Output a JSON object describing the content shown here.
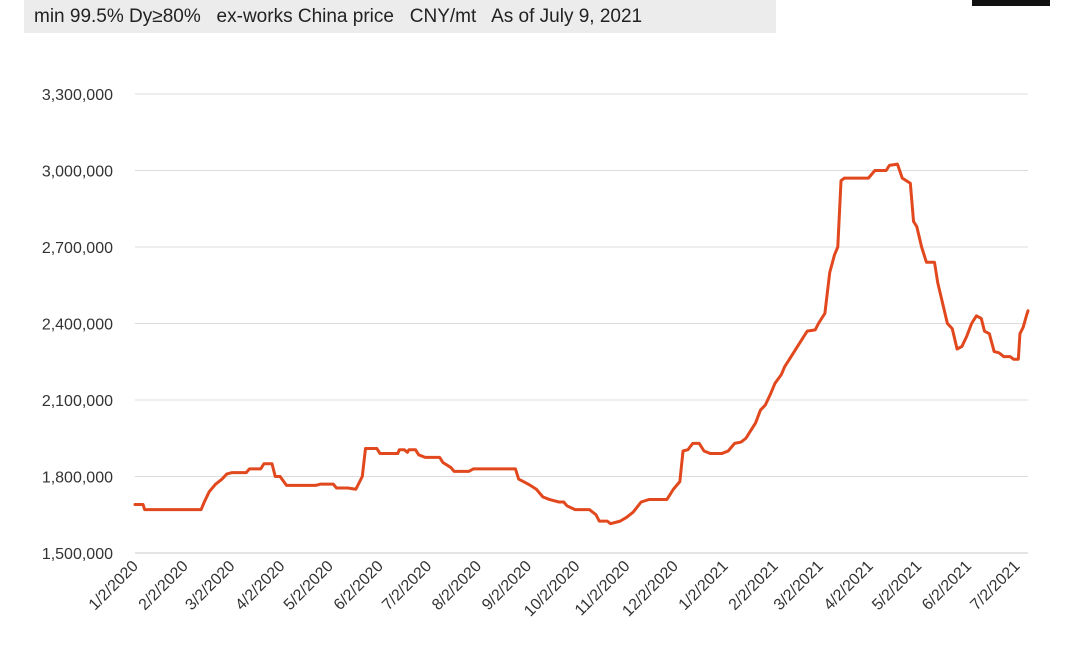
{
  "header": {
    "subtitle": "min 99.5% Dy≥80%   ex-works China price   CNY/mt   As of July 9, 2021"
  },
  "colors": {
    "series": "#e2481d",
    "grid": "#dcdcdc",
    "header_bg": "#ececec"
  },
  "chart_data": {
    "type": "line",
    "title": "",
    "xlabel": "",
    "ylabel": "",
    "ylim": [
      1500000,
      3300000
    ],
    "y_ticks": [
      1500000,
      1800000,
      2100000,
      2400000,
      2700000,
      3000000,
      3300000
    ],
    "y_tick_labels": [
      "1,500,000",
      "1,800,000",
      "2,100,000",
      "2,400,000",
      "2,700,000",
      "3,000,000",
      "3,300,000"
    ],
    "x_range": [
      "2020-01-02",
      "2021-07-09"
    ],
    "x_ticks": [
      "2020-01-02",
      "2020-02-02",
      "2020-03-02",
      "2020-04-02",
      "2020-05-02",
      "2020-06-02",
      "2020-07-02",
      "2020-08-02",
      "2020-09-02",
      "2020-10-02",
      "2020-11-02",
      "2020-12-02",
      "2021-01-02",
      "2021-02-02",
      "2021-03-02",
      "2021-04-02",
      "2021-05-02",
      "2021-06-02",
      "2021-07-02"
    ],
    "x_tick_labels": [
      "1/2/2020",
      "2/2/2020",
      "3/2/2020",
      "4/2/2020",
      "5/2/2020",
      "6/2/2020",
      "7/2/2020",
      "8/2/2020",
      "9/2/2020",
      "10/2/2020",
      "11/2/2020",
      "12/2/2020",
      "1/2/2021",
      "2/2/2021",
      "3/2/2021",
      "4/2/2021",
      "5/2/2021",
      "6/2/2021",
      "7/2/2021"
    ],
    "grid": true,
    "series": [
      {
        "points": [
          [
            "2020-01-02",
            1690000
          ],
          [
            "2020-01-07",
            1690000
          ],
          [
            "2020-01-08",
            1670000
          ],
          [
            "2020-02-12",
            1670000
          ],
          [
            "2020-02-14",
            1700000
          ],
          [
            "2020-02-17",
            1740000
          ],
          [
            "2020-02-21",
            1770000
          ],
          [
            "2020-02-25",
            1790000
          ],
          [
            "2020-02-28",
            1810000
          ],
          [
            "2020-03-02",
            1815000
          ],
          [
            "2020-03-11",
            1815000
          ],
          [
            "2020-03-13",
            1830000
          ],
          [
            "2020-03-20",
            1830000
          ],
          [
            "2020-03-22",
            1850000
          ],
          [
            "2020-03-27",
            1850000
          ],
          [
            "2020-03-29",
            1800000
          ],
          [
            "2020-04-01",
            1800000
          ],
          [
            "2020-04-05",
            1765000
          ],
          [
            "2020-04-23",
            1765000
          ],
          [
            "2020-04-26",
            1770000
          ],
          [
            "2020-05-04",
            1770000
          ],
          [
            "2020-05-06",
            1755000
          ],
          [
            "2020-05-13",
            1755000
          ],
          [
            "2020-05-18",
            1750000
          ],
          [
            "2020-05-22",
            1800000
          ],
          [
            "2020-05-24",
            1910000
          ],
          [
            "2020-05-31",
            1910000
          ],
          [
            "2020-06-02",
            1890000
          ],
          [
            "2020-06-13",
            1890000
          ],
          [
            "2020-06-14",
            1905000
          ],
          [
            "2020-06-17",
            1905000
          ],
          [
            "2020-06-19",
            1895000
          ],
          [
            "2020-06-20",
            1905000
          ],
          [
            "2020-06-24",
            1905000
          ],
          [
            "2020-06-26",
            1885000
          ],
          [
            "2020-06-30",
            1875000
          ],
          [
            "2020-07-09",
            1875000
          ],
          [
            "2020-07-11",
            1855000
          ],
          [
            "2020-07-16",
            1835000
          ],
          [
            "2020-07-18",
            1820000
          ],
          [
            "2020-07-27",
            1820000
          ],
          [
            "2020-07-30",
            1830000
          ],
          [
            "2020-08-25",
            1830000
          ],
          [
            "2020-08-27",
            1790000
          ],
          [
            "2020-09-02",
            1770000
          ],
          [
            "2020-09-07",
            1750000
          ],
          [
            "2020-09-11",
            1720000
          ],
          [
            "2020-09-15",
            1710000
          ],
          [
            "2020-09-21",
            1700000
          ],
          [
            "2020-09-24",
            1700000
          ],
          [
            "2020-09-26",
            1685000
          ],
          [
            "2020-10-01",
            1670000
          ],
          [
            "2020-10-10",
            1670000
          ],
          [
            "2020-10-14",
            1650000
          ],
          [
            "2020-10-16",
            1625000
          ],
          [
            "2020-10-21",
            1625000
          ],
          [
            "2020-10-23",
            1615000
          ],
          [
            "2020-10-29",
            1625000
          ],
          [
            "2020-11-02",
            1640000
          ],
          [
            "2020-11-06",
            1660000
          ],
          [
            "2020-11-11",
            1700000
          ],
          [
            "2020-11-16",
            1710000
          ],
          [
            "2020-11-27",
            1710000
          ],
          [
            "2020-12-01",
            1750000
          ],
          [
            "2020-12-05",
            1780000
          ],
          [
            "2020-12-07",
            1900000
          ],
          [
            "2020-12-10",
            1905000
          ],
          [
            "2020-12-13",
            1930000
          ],
          [
            "2020-12-17",
            1930000
          ],
          [
            "2020-12-20",
            1900000
          ],
          [
            "2020-12-24",
            1890000
          ],
          [
            "2020-12-31",
            1890000
          ],
          [
            "2021-01-04",
            1900000
          ],
          [
            "2021-01-08",
            1930000
          ],
          [
            "2021-01-12",
            1935000
          ],
          [
            "2021-01-15",
            1950000
          ],
          [
            "2021-01-18",
            1980000
          ],
          [
            "2021-01-21",
            2010000
          ],
          [
            "2021-01-24",
            2060000
          ],
          [
            "2021-01-27",
            2080000
          ],
          [
            "2021-01-30",
            2120000
          ],
          [
            "2021-02-02",
            2165000
          ],
          [
            "2021-02-06",
            2200000
          ],
          [
            "2021-02-08",
            2230000
          ],
          [
            "2021-02-12",
            2270000
          ],
          [
            "2021-02-16",
            2310000
          ],
          [
            "2021-02-19",
            2340000
          ],
          [
            "2021-02-22",
            2370000
          ],
          [
            "2021-02-27",
            2375000
          ],
          [
            "2021-03-01",
            2400000
          ],
          [
            "2021-03-05",
            2440000
          ],
          [
            "2021-03-08",
            2600000
          ],
          [
            "2021-03-11",
            2670000
          ],
          [
            "2021-03-13",
            2700000
          ],
          [
            "2021-03-15",
            2960000
          ],
          [
            "2021-03-17",
            2970000
          ],
          [
            "2021-04-01",
            2970000
          ],
          [
            "2021-04-05",
            3000000
          ],
          [
            "2021-04-12",
            3000000
          ],
          [
            "2021-04-14",
            3020000
          ],
          [
            "2021-04-19",
            3025000
          ],
          [
            "2021-04-22",
            2970000
          ],
          [
            "2021-04-27",
            2950000
          ],
          [
            "2021-04-29",
            2800000
          ],
          [
            "2021-05-01",
            2780000
          ],
          [
            "2021-05-04",
            2700000
          ],
          [
            "2021-05-07",
            2640000
          ],
          [
            "2021-05-12",
            2640000
          ],
          [
            "2021-05-14",
            2560000
          ],
          [
            "2021-05-17",
            2480000
          ],
          [
            "2021-05-20",
            2400000
          ],
          [
            "2021-05-23",
            2380000
          ],
          [
            "2021-05-26",
            2300000
          ],
          [
            "2021-05-29",
            2310000
          ],
          [
            "2021-06-01",
            2350000
          ],
          [
            "2021-06-04",
            2400000
          ],
          [
            "2021-06-07",
            2430000
          ],
          [
            "2021-06-10",
            2420000
          ],
          [
            "2021-06-12",
            2370000
          ],
          [
            "2021-06-15",
            2360000
          ],
          [
            "2021-06-18",
            2290000
          ],
          [
            "2021-06-21",
            2285000
          ],
          [
            "2021-06-24",
            2270000
          ],
          [
            "2021-06-28",
            2270000
          ],
          [
            "2021-06-30",
            2260000
          ],
          [
            "2021-07-03",
            2260000
          ],
          [
            "2021-07-04",
            2360000
          ],
          [
            "2021-07-06",
            2385000
          ],
          [
            "2021-07-08",
            2430000
          ],
          [
            "2021-07-09",
            2450000
          ]
        ]
      }
    ]
  }
}
